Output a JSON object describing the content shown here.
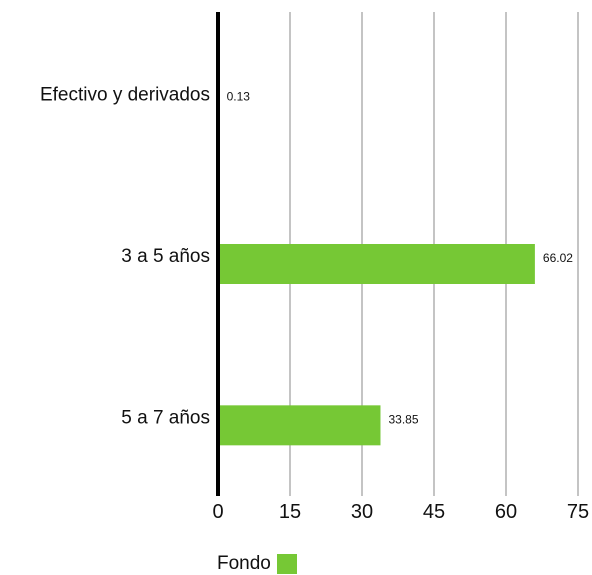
{
  "chart_data": {
    "type": "bar",
    "orientation": "horizontal",
    "categories": [
      "Efectivo y derivados",
      "3 a 5 años",
      "5 a 7 años"
    ],
    "series": [
      {
        "name": "Fondo",
        "values": [
          0.13,
          66.02,
          33.85
        ],
        "color": "#76c835"
      }
    ],
    "data_labels": [
      "0.13",
      "66.02",
      "33.85"
    ],
    "xlim": [
      0,
      75
    ],
    "xticks": [
      "0",
      "15",
      "30",
      "45",
      "60",
      "75"
    ],
    "grid": true,
    "legend_position": "bottom-left"
  },
  "legend": {
    "label": "Fondo",
    "color": "#76c835"
  }
}
